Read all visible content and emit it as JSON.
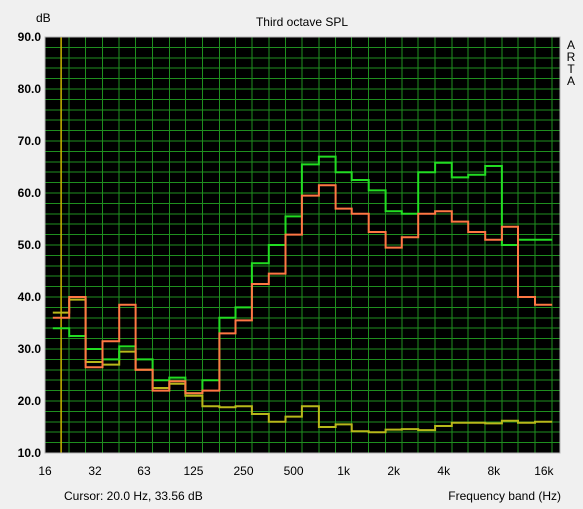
{
  "chart_data": {
    "type": "line",
    "title": "Third octave SPL",
    "ylabel": "dB",
    "xlabel": "Frequency band (Hz)",
    "ylim": [
      10,
      90
    ],
    "yticks": [
      "90.0",
      "80.0",
      "70.0",
      "60.0",
      "50.0",
      "40.0",
      "30.0",
      "20.0",
      "10.0"
    ],
    "xscale": "log",
    "xlim": [
      16,
      20000
    ],
    "xticks": [
      "16",
      "32",
      "63",
      "125",
      "250",
      "500",
      "1k",
      "2k",
      "4k",
      "8k",
      "16k"
    ],
    "xtick_values": [
      16,
      32,
      63,
      125,
      250,
      500,
      1000,
      2000,
      4000,
      8000,
      16000
    ],
    "bands": [
      20,
      25,
      31.5,
      40,
      50,
      63,
      80,
      100,
      125,
      160,
      200,
      250,
      315,
      400,
      500,
      630,
      800,
      1000,
      1250,
      1600,
      2000,
      2500,
      3150,
      4000,
      5000,
      6300,
      8000,
      10000,
      12500,
      16000
    ],
    "grid": true,
    "series": [
      {
        "color": "#22dd22",
        "values": [
          34,
          32.5,
          30,
          28,
          30.5,
          28,
          24,
          24.5,
          21.5,
          24,
          36,
          38,
          46.5,
          50,
          55.5,
          65.5,
          67,
          64,
          62.5,
          60.5,
          56.5,
          56,
          64,
          65.8,
          63,
          63.5,
          65.2,
          50,
          51,
          51
        ]
      },
      {
        "color": "#ff7744",
        "values": [
          36,
          40,
          26.5,
          31.5,
          38.5,
          26,
          22,
          23.8,
          21.5,
          22,
          33,
          35.5,
          42.5,
          44.5,
          52,
          59.5,
          61.5,
          57,
          56,
          52.5,
          49.5,
          51.5,
          56,
          56.5,
          54.5,
          52.5,
          51,
          53.5,
          40,
          38.5
        ]
      },
      {
        "color": "#b8b81a",
        "values": [
          37,
          39.5,
          27.5,
          27,
          29.5,
          26,
          22.5,
          23.3,
          21,
          19,
          18.8,
          19,
          17.5,
          16,
          17,
          19,
          15,
          15.5,
          14.2,
          14,
          14.5,
          14.6,
          14.4,
          15.2,
          15.8,
          15.8,
          15.7,
          16.2,
          15.8,
          16
        ]
      }
    ],
    "cursor_text": "Cursor:    20.0 Hz, 33.56 dB",
    "cursor_x": 20,
    "brand": [
      "A",
      "R",
      "T",
      "A"
    ]
  },
  "colors": {
    "plot_bg": "#000000",
    "grid": "#1f8f1f",
    "cursor": "#c8b400",
    "frame": "#b4b4b4"
  }
}
